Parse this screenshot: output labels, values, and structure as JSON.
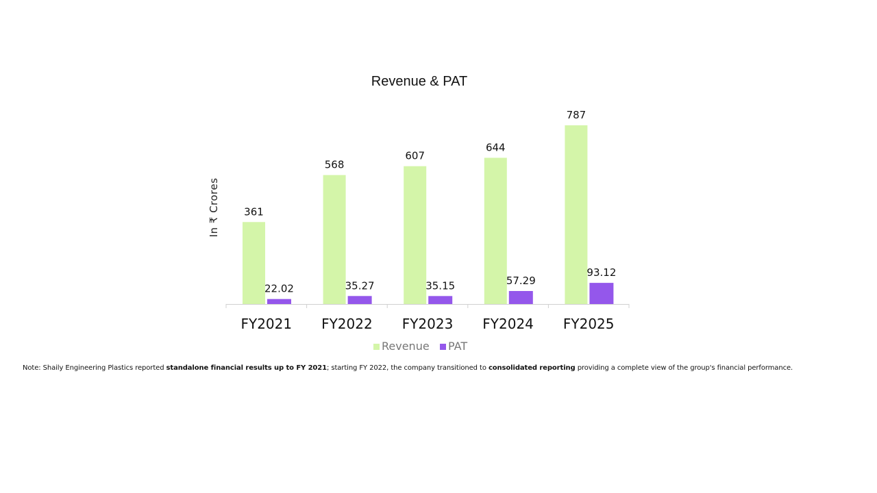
{
  "chart_data": {
    "type": "bar",
    "title": "Revenue & PAT",
    "xlabel": "",
    "ylabel": "In ₹ Crores",
    "categories": [
      "FY2021",
      "FY2022",
      "FY2023",
      "FY2024",
      "FY2025"
    ],
    "series": [
      {
        "name": "Revenue",
        "values": [
          361,
          568,
          607,
          644,
          787
        ],
        "labels": [
          "361",
          "568",
          "607",
          "644",
          "787"
        ],
        "color": "#d4f5a9"
      },
      {
        "name": "PAT",
        "values": [
          22.02,
          35.27,
          35.15,
          57.29,
          93.12
        ],
        "labels": [
          "22.02",
          "35.27",
          "35.15",
          "57.29",
          "93.12"
        ],
        "color": "#9457eb"
      }
    ],
    "ylim": [
      0,
      800
    ],
    "grid": false,
    "legend": "bottom-center"
  },
  "note": {
    "prefix": "Note: Shaily Engineering Plastics reported ",
    "bold1": "standalone financial results up to FY 2021",
    "middle": "; starting FY 2022, the company transitioned to ",
    "bold2": "consolidated reporting",
    "suffix": " providing a complete view of the group's financial performance."
  }
}
